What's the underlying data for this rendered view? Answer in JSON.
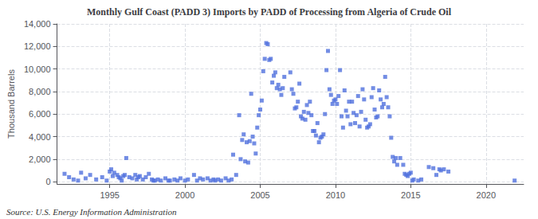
{
  "chart_data": {
    "type": "scatter",
    "title": "Monthly Gulf Coast (PADD 3) Imports by PADD of Processing from Algeria of Crude Oil",
    "ylabel": "Thousand Barrels",
    "annotations": [
      "Source: U.S. Energy Information Administration"
    ],
    "marker": "square",
    "grid": true,
    "xlim": [
      1991.5,
      2022.5
    ],
    "xticks": [
      1995,
      2000,
      2005,
      2010,
      2015,
      2020
    ],
    "ylim": [
      -200,
      14000
    ],
    "yticks": [
      0,
      {
        "value": 2000,
        "label": "2,000"
      },
      {
        "value": 4000,
        "label": "4,000"
      },
      {
        "value": 6000,
        "label": "6,000"
      },
      {
        "value": 8000,
        "label": "8,000"
      },
      {
        "value": 10000,
        "label": "10,000"
      },
      {
        "value": 12000,
        "label": "12,000"
      },
      {
        "value": 14000,
        "label": "14,000"
      }
    ],
    "x": [
      1992.0,
      1992.3,
      1992.6,
      1992.9,
      1993.1,
      1993.4,
      1993.7,
      1994.1,
      1994.5,
      1994.8,
      1995.0,
      1995.1,
      1995.2,
      1995.3,
      1995.5,
      1995.6,
      1995.7,
      1995.8,
      1995.9,
      1996.0,
      1996.1,
      1996.3,
      1996.5,
      1996.7,
      1996.8,
      1996.9,
      1997.0,
      1997.2,
      1997.4,
      1997.6,
      1997.8,
      1997.9,
      1998.0,
      1998.2,
      1998.4,
      1998.7,
      1998.9,
      1999.0,
      1999.3,
      1999.5,
      1999.7,
      2000.0,
      2000.2,
      2000.6,
      2000.8,
      2001.0,
      2001.2,
      2001.5,
      2001.7,
      2001.9,
      2002.0,
      2002.2,
      2002.4,
      2002.7,
      2002.9,
      2003.1,
      2003.2,
      2003.4,
      2003.6,
      2003.7,
      2003.8,
      2003.9,
      2004.0,
      2004.1,
      2004.2,
      2004.3,
      2004.4,
      2004.5,
      2004.6,
      2004.7,
      2004.8,
      2004.9,
      2005.0,
      2005.1,
      2005.2,
      2005.3,
      2005.4,
      2005.5,
      2005.6,
      2005.7,
      2005.8,
      2005.9,
      2006.0,
      2006.1,
      2006.2,
      2006.3,
      2006.4,
      2006.5,
      2006.6,
      2007.0,
      2007.1,
      2007.2,
      2007.3,
      2007.4,
      2007.5,
      2007.6,
      2007.7,
      2007.8,
      2007.9,
      2008.0,
      2008.1,
      2008.2,
      2008.3,
      2008.4,
      2008.5,
      2008.6,
      2008.7,
      2008.8,
      2008.9,
      2009.0,
      2009.1,
      2009.2,
      2009.3,
      2009.4,
      2009.5,
      2009.6,
      2009.7,
      2009.8,
      2009.9,
      2010.0,
      2010.1,
      2010.2,
      2010.3,
      2010.4,
      2010.5,
      2010.6,
      2010.7,
      2010.8,
      2010.9,
      2011.0,
      2011.1,
      2011.2,
      2011.3,
      2011.4,
      2011.5,
      2011.6,
      2011.7,
      2011.8,
      2011.9,
      2012.0,
      2012.1,
      2012.2,
      2012.3,
      2012.4,
      2012.5,
      2012.6,
      2012.7,
      2012.8,
      2012.9,
      2013.0,
      2013.1,
      2013.2,
      2013.3,
      2013.4,
      2013.5,
      2013.6,
      2013.7,
      2013.8,
      2013.9,
      2014.0,
      2014.1,
      2014.3,
      2014.5,
      2014.6,
      2014.7,
      2014.8,
      2014.9,
      2015.0,
      2015.1,
      2015.2,
      2015.5,
      2015.7,
      2016.2,
      2016.5,
      2016.7,
      2016.9,
      2017.0,
      2017.2,
      2017.5,
      2021.9
    ],
    "values": [
      700,
      400,
      200,
      100,
      800,
      300,
      600,
      200,
      400,
      100,
      900,
      1100,
      500,
      800,
      600,
      400,
      300,
      100,
      500,
      600,
      2100,
      400,
      300,
      600,
      200,
      400,
      500,
      200,
      400,
      700,
      200,
      100,
      100,
      200,
      100,
      300,
      100,
      100,
      200,
      100,
      300,
      100,
      200,
      600,
      100,
      300,
      200,
      300,
      100,
      200,
      100,
      200,
      100,
      300,
      100,
      200,
      2400,
      600,
      5900,
      2000,
      3700,
      4200,
      1800,
      3500,
      1700,
      3600,
      7800,
      4000,
      3400,
      2500,
      4800,
      5900,
      6400,
      7200,
      9800,
      10900,
      12300,
      12200,
      10800,
      10900,
      8800,
      9400,
      9700,
      8300,
      8600,
      8200,
      7700,
      8300,
      9300,
      9700,
      8200,
      7800,
      6500,
      6600,
      7100,
      8700,
      5800,
      5600,
      6200,
      5500,
      6800,
      6100,
      7100,
      5900,
      4500,
      4500,
      4100,
      5200,
      3500,
      3900,
      4000,
      4200,
      6000,
      9900,
      11600,
      8200,
      7700,
      6900,
      7200,
      7300,
      6900,
      7600,
      9900,
      5800,
      4800,
      8100,
      6300,
      5800,
      7100,
      5100,
      7100,
      6100,
      5200,
      5900,
      7600,
      4900,
      6200,
      8200,
      7300,
      5500,
      4800,
      4900,
      5100,
      7500,
      8300,
      6400,
      5700,
      5800,
      8100,
      7300,
      6600,
      6900,
      9300,
      7500,
      6600,
      5800,
      3900,
      2200,
      1800,
      2100,
      1500,
      2100,
      1500,
      700,
      600,
      500,
      700,
      800,
      100,
      200,
      100,
      200,
      1300,
      1200,
      600,
      1100,
      1000,
      1100,
      900,
      100
    ]
  }
}
